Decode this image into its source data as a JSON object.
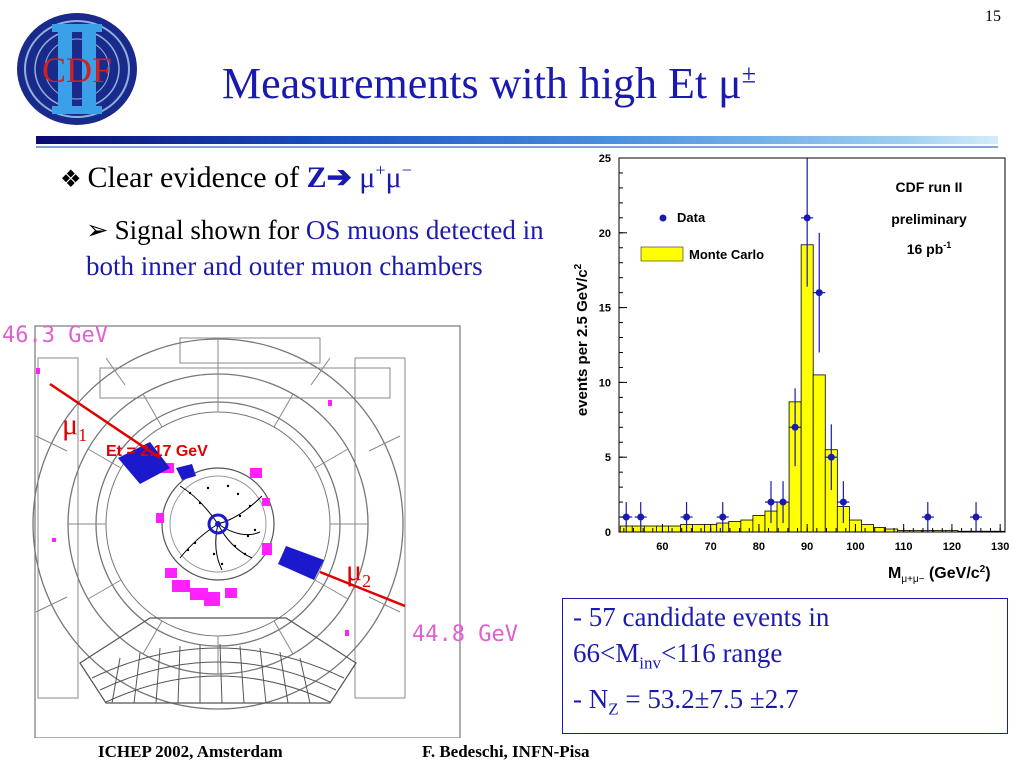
{
  "page_number": "15",
  "title": "Measurements with high Et μ",
  "title_sup": "±",
  "logo": {
    "text": "CDF",
    "numeral": "II"
  },
  "bullet1": {
    "prefix": "Clear evidence of ",
    "z": "Z",
    "arrow": "➔",
    "mu1": " μ",
    "sup1": "+",
    "mu2": "μ",
    "sup2": "−"
  },
  "bullet2": {
    "prefix": "Signal shown for ",
    "highlight": "OS muons detected in both inner and outer muon chambers"
  },
  "event_display": {
    "top_label": "46.3 GeV",
    "right_label": "44.8 GeV",
    "et_label": "Et = 2.17 GeV",
    "mu1_label": "μ",
    "mu1_sub": "1",
    "mu2_label": "μ",
    "mu2_sub": "2"
  },
  "info_box": {
    "line1": "- 57 candidate events in",
    "line2_a": "66<M",
    "line2_sub": "inv",
    "line2_b": "<116 range",
    "line3_a": "- N",
    "line3_sub": "Z",
    "line3_b": " = 53.2±7.5 ±2.7"
  },
  "footer": {
    "left": "ICHEP 2002, Amsterdam",
    "right": "F. Bedeschi, INFN-Pisa"
  },
  "chart_data": {
    "type": "bar",
    "ylabel": "events per 2.5 GeV/c",
    "ylabel_sup": "2",
    "xlabel_main": "M",
    "xlabel_sub": "μ+μ−",
    "xlabel_units": " (GeV/c",
    "xlabel_units_sup": "2",
    "xlabel_units_end": ")",
    "xlim": [
      51,
      131
    ],
    "ylim": [
      0,
      25
    ],
    "xticks": [
      60,
      70,
      80,
      90,
      100,
      110,
      120,
      130
    ],
    "yticks": [
      0,
      5,
      10,
      15,
      20,
      25
    ],
    "legend": {
      "data": "Data",
      "mc": "Monte Carlo"
    },
    "annotation": {
      "line1": "CDF run II",
      "line2": "preliminary",
      "line3_a": "16 pb",
      "line3_sup": "-1"
    },
    "mc_bin_width": 2.5,
    "mc_series": {
      "name": "Monte Carlo",
      "bin_edges_start": 51.25,
      "values": [
        0.4,
        0.4,
        0.4,
        0.4,
        0.4,
        0.5,
        0.5,
        0.5,
        0.6,
        0.7,
        0.8,
        1.1,
        1.4,
        2.0,
        8.7,
        19.2,
        10.5,
        5.5,
        1.7,
        0.8,
        0.5,
        0.3,
        0.2,
        0.1,
        0.1,
        0.1,
        0.1,
        0.1,
        0.05,
        0.05,
        0.05,
        0.05
      ]
    },
    "data_series": {
      "name": "Data",
      "x": [
        52.5,
        55.5,
        65,
        72.5,
        82.5,
        85,
        87.5,
        90,
        92.5,
        95,
        97.5,
        115,
        125
      ],
      "y": [
        1,
        1,
        1,
        1,
        2,
        2,
        7,
        21,
        16,
        5,
        2,
        1,
        1
      ],
      "err": [
        1,
        1,
        1,
        1,
        1.4,
        1.4,
        2.6,
        4.6,
        4,
        2.2,
        1.4,
        1,
        1
      ]
    },
    "colors": {
      "mc_fill": "#ffff00",
      "data": "#1a1ab0",
      "axis": "#000000"
    }
  }
}
